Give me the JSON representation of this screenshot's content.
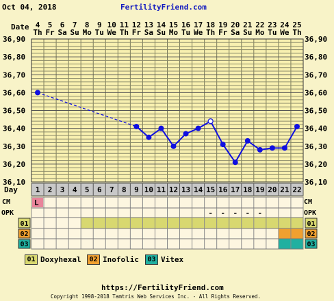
{
  "header": {
    "date_text": "Oct 04, 2018",
    "site": "FertilityFriend.com"
  },
  "row_labels": {
    "date": "Date",
    "day": "Day",
    "cm": "CM",
    "opk": "OPK"
  },
  "dates": [
    "4",
    "5",
    "6",
    "7",
    "8",
    "9",
    "10",
    "11",
    "12",
    "13",
    "14",
    "15",
    "16",
    "17",
    "18",
    "19",
    "20",
    "21",
    "22",
    "23",
    "24",
    "25"
  ],
  "weekdays": [
    "Th",
    "Fr",
    "Sa",
    "Su",
    "Mo",
    "Tu",
    "We",
    "Th",
    "Fr",
    "Sa",
    "Su",
    "Mo",
    "Tu",
    "We",
    "Th",
    "Fr",
    "Sa",
    "Su",
    "Mo",
    "Tu",
    "We",
    "Th"
  ],
  "days": [
    "1",
    "2",
    "3",
    "4",
    "5",
    "6",
    "7",
    "8",
    "9",
    "10",
    "11",
    "12",
    "13",
    "14",
    "15",
    "16",
    "17",
    "18",
    "19",
    "20",
    "21",
    "22"
  ],
  "cm_marks": [
    {
      "day": 1,
      "text": "L",
      "color": "#e8849a"
    }
  ],
  "opk_marks": [
    {
      "day": 15,
      "text": "-"
    },
    {
      "day": 16,
      "text": "-"
    },
    {
      "day": 17,
      "text": "-"
    },
    {
      "day": 18,
      "text": "-"
    },
    {
      "day": 19,
      "text": "-"
    }
  ],
  "meds": [
    {
      "code": "01",
      "name": "Doxyhexal",
      "color": "#d8d870",
      "start_day": 5,
      "end_day": 22
    },
    {
      "code": "02",
      "name": "Inofolic",
      "color": "#f0a030",
      "start_day": 21,
      "end_day": 22
    },
    {
      "code": "03",
      "name": "Vitex",
      "color": "#20b0a0",
      "start_day": 21,
      "end_day": 22
    }
  ],
  "chart_data": {
    "type": "line",
    "ylabel": "",
    "ylim": [
      36.1,
      36.9
    ],
    "y_ticks": [
      "36,10",
      "36,20",
      "36,30",
      "36,40",
      "36,50",
      "36,60",
      "36,70",
      "36,80",
      "36,90"
    ],
    "series": [
      {
        "line_color": "#1010e0",
        "points": [
          {
            "day": 1,
            "temp": 36.6
          },
          {
            "day": 9,
            "temp": 36.41
          },
          {
            "day": 10,
            "temp": 36.35
          },
          {
            "day": 11,
            "temp": 36.4
          },
          {
            "day": 12,
            "temp": 36.3
          },
          {
            "day": 13,
            "temp": 36.37
          },
          {
            "day": 14,
            "temp": 36.4
          },
          {
            "day": 15,
            "temp": 36.44,
            "open": true
          },
          {
            "day": 16,
            "temp": 36.31
          },
          {
            "day": 17,
            "temp": 36.21
          },
          {
            "day": 18,
            "temp": 36.33
          },
          {
            "day": 19,
            "temp": 36.28
          },
          {
            "day": 20,
            "temp": 36.29
          },
          {
            "day": 21,
            "temp": 36.29
          },
          {
            "day": 22,
            "temp": 36.41
          }
        ],
        "dashed_segments": [
          [
            1,
            9
          ]
        ]
      }
    ]
  },
  "footer": {
    "url": "https://FertilityFriend.com",
    "copyright": "Copyright 1998-2018 Tamtris Web Services Inc. - All Rights Reserved."
  }
}
